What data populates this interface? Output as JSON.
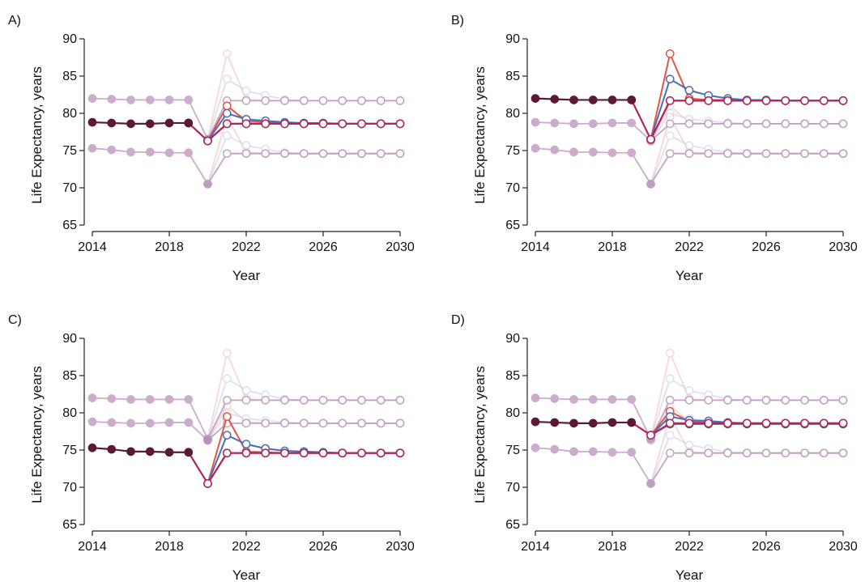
{
  "figure": {
    "panel_labels": [
      "A)",
      "B)",
      "C)",
      "D)"
    ]
  },
  "colors": {
    "purple_baseline": "#b689b9",
    "dark_observed": "#5a1a35",
    "crimson_projection": "#b3225a",
    "red_scenario": "#e0564a",
    "blue_scenario": "#4a6fb5",
    "gray_scenario": "#4f5a5a",
    "pink_faint": "#f3b8b8",
    "lavender_faint": "#c9cde8"
  },
  "chart_data": [
    {
      "panel": "A)",
      "type": "line",
      "xlabel": "Year",
      "ylabel": "Life Expectancy, years",
      "xlim": [
        2014,
        2030
      ],
      "ylim": [
        65,
        90
      ],
      "xticks": [
        "2014",
        "2018",
        "2022",
        "2026",
        "2030"
      ],
      "yticks": [
        "65",
        "70",
        "75",
        "80",
        "85",
        "90"
      ],
      "highlight_baseline": "mid",
      "scenario_values": {
        "red": [
          81.0,
          79.0,
          78.8,
          78.7,
          78.6,
          78.6,
          78.6,
          78.6,
          78.6,
          78.6
        ],
        "blue": [
          80.0,
          79.2,
          79.0,
          78.8,
          78.7,
          78.7,
          78.6,
          78.6,
          78.6,
          78.6
        ],
        "gray": [
          78.6,
          78.6,
          78.6,
          78.6,
          78.6,
          78.6,
          78.6,
          78.6,
          78.6,
          78.6
        ]
      }
    },
    {
      "panel": "B)",
      "type": "line",
      "xlabel": "Year",
      "ylabel": "Life Expectancy, years",
      "xlim": [
        2014,
        2030
      ],
      "ylim": [
        65,
        90
      ],
      "xticks": [
        "2014",
        "2018",
        "2022",
        "2026",
        "2030"
      ],
      "yticks": [
        "65",
        "70",
        "75",
        "80",
        "85",
        "90"
      ],
      "highlight_baseline": "high",
      "scenario_values": {
        "red": [
          88.0,
          82.0,
          81.8,
          81.8,
          81.7,
          81.7,
          81.7,
          81.7,
          81.7,
          81.7
        ],
        "blue": [
          84.6,
          83.1,
          82.4,
          82.0,
          81.8,
          81.8,
          81.7,
          81.7,
          81.7,
          81.7
        ],
        "gray": [
          81.7,
          81.7,
          81.7,
          81.7,
          81.7,
          81.7,
          81.7,
          81.7,
          81.7,
          81.7
        ]
      }
    },
    {
      "panel": "C)",
      "type": "line",
      "xlabel": "Year",
      "ylabel": "Life Expectancy, years",
      "xlim": [
        2014,
        2030
      ],
      "ylim": [
        65,
        90
      ],
      "xticks": [
        "2014",
        "2018",
        "2022",
        "2026",
        "2030"
      ],
      "yticks": [
        "65",
        "70",
        "75",
        "80",
        "85",
        "90"
      ],
      "highlight_baseline": "low",
      "scenario_values": {
        "red": [
          79.5,
          74.8,
          74.7,
          74.6,
          74.6,
          74.6,
          74.6,
          74.6,
          74.6,
          74.6
        ],
        "blue": [
          77.0,
          75.8,
          75.2,
          74.9,
          74.8,
          74.7,
          74.6,
          74.6,
          74.6,
          74.6
        ],
        "gray": [
          74.6,
          74.6,
          74.6,
          74.6,
          74.6,
          74.6,
          74.6,
          74.6,
          74.6,
          74.6
        ]
      }
    },
    {
      "panel": "D)",
      "type": "line",
      "xlabel": "Year",
      "ylabel": "Life Expectancy, years",
      "xlim": [
        2014,
        2030
      ],
      "ylim": [
        65,
        90
      ],
      "xticks": [
        "2014",
        "2018",
        "2022",
        "2026",
        "2030"
      ],
      "yticks": [
        "65",
        "70",
        "75",
        "80",
        "85",
        "90"
      ],
      "highlight_baseline": "mid",
      "highlight_dip_2020": 77.0,
      "scenario_values": {
        "red": [
          80.2,
          78.8,
          78.7,
          78.6,
          78.6,
          78.6,
          78.6,
          78.6,
          78.6,
          78.6
        ],
        "blue": [
          79.5,
          79.0,
          78.9,
          78.7,
          78.6,
          78.6,
          78.6,
          78.6,
          78.6,
          78.6
        ],
        "gray": [
          78.5,
          78.5,
          78.5,
          78.5,
          78.5,
          78.5,
          78.5,
          78.5,
          78.5,
          78.5
        ]
      }
    }
  ],
  "shared_series": {
    "observed_years": [
      2014,
      2015,
      2016,
      2017,
      2018,
      2019
    ],
    "projection_years": [
      2020,
      2021,
      2022,
      2023,
      2024,
      2025,
      2026,
      2027,
      2028,
      2029,
      2030
    ],
    "baselines": {
      "high": {
        "observed": [
          82.0,
          81.9,
          81.8,
          81.8,
          81.8,
          81.8
        ],
        "dip_2020": 76.5,
        "level": 81.7
      },
      "mid": {
        "observed": [
          78.8,
          78.7,
          78.6,
          78.6,
          78.7,
          78.7
        ],
        "dip_2020": 76.3,
        "level": 78.6
      },
      "low": {
        "observed": [
          75.3,
          75.1,
          74.8,
          74.8,
          74.7,
          74.7
        ],
        "dip_2020": 70.5,
        "level": 74.6
      }
    },
    "faint_scenarios": {
      "pink_peak_2021": [
        88.0,
        81.0,
        79.5
      ],
      "lavender_peak_2021": [
        84.6,
        80.0,
        77.0
      ]
    }
  }
}
